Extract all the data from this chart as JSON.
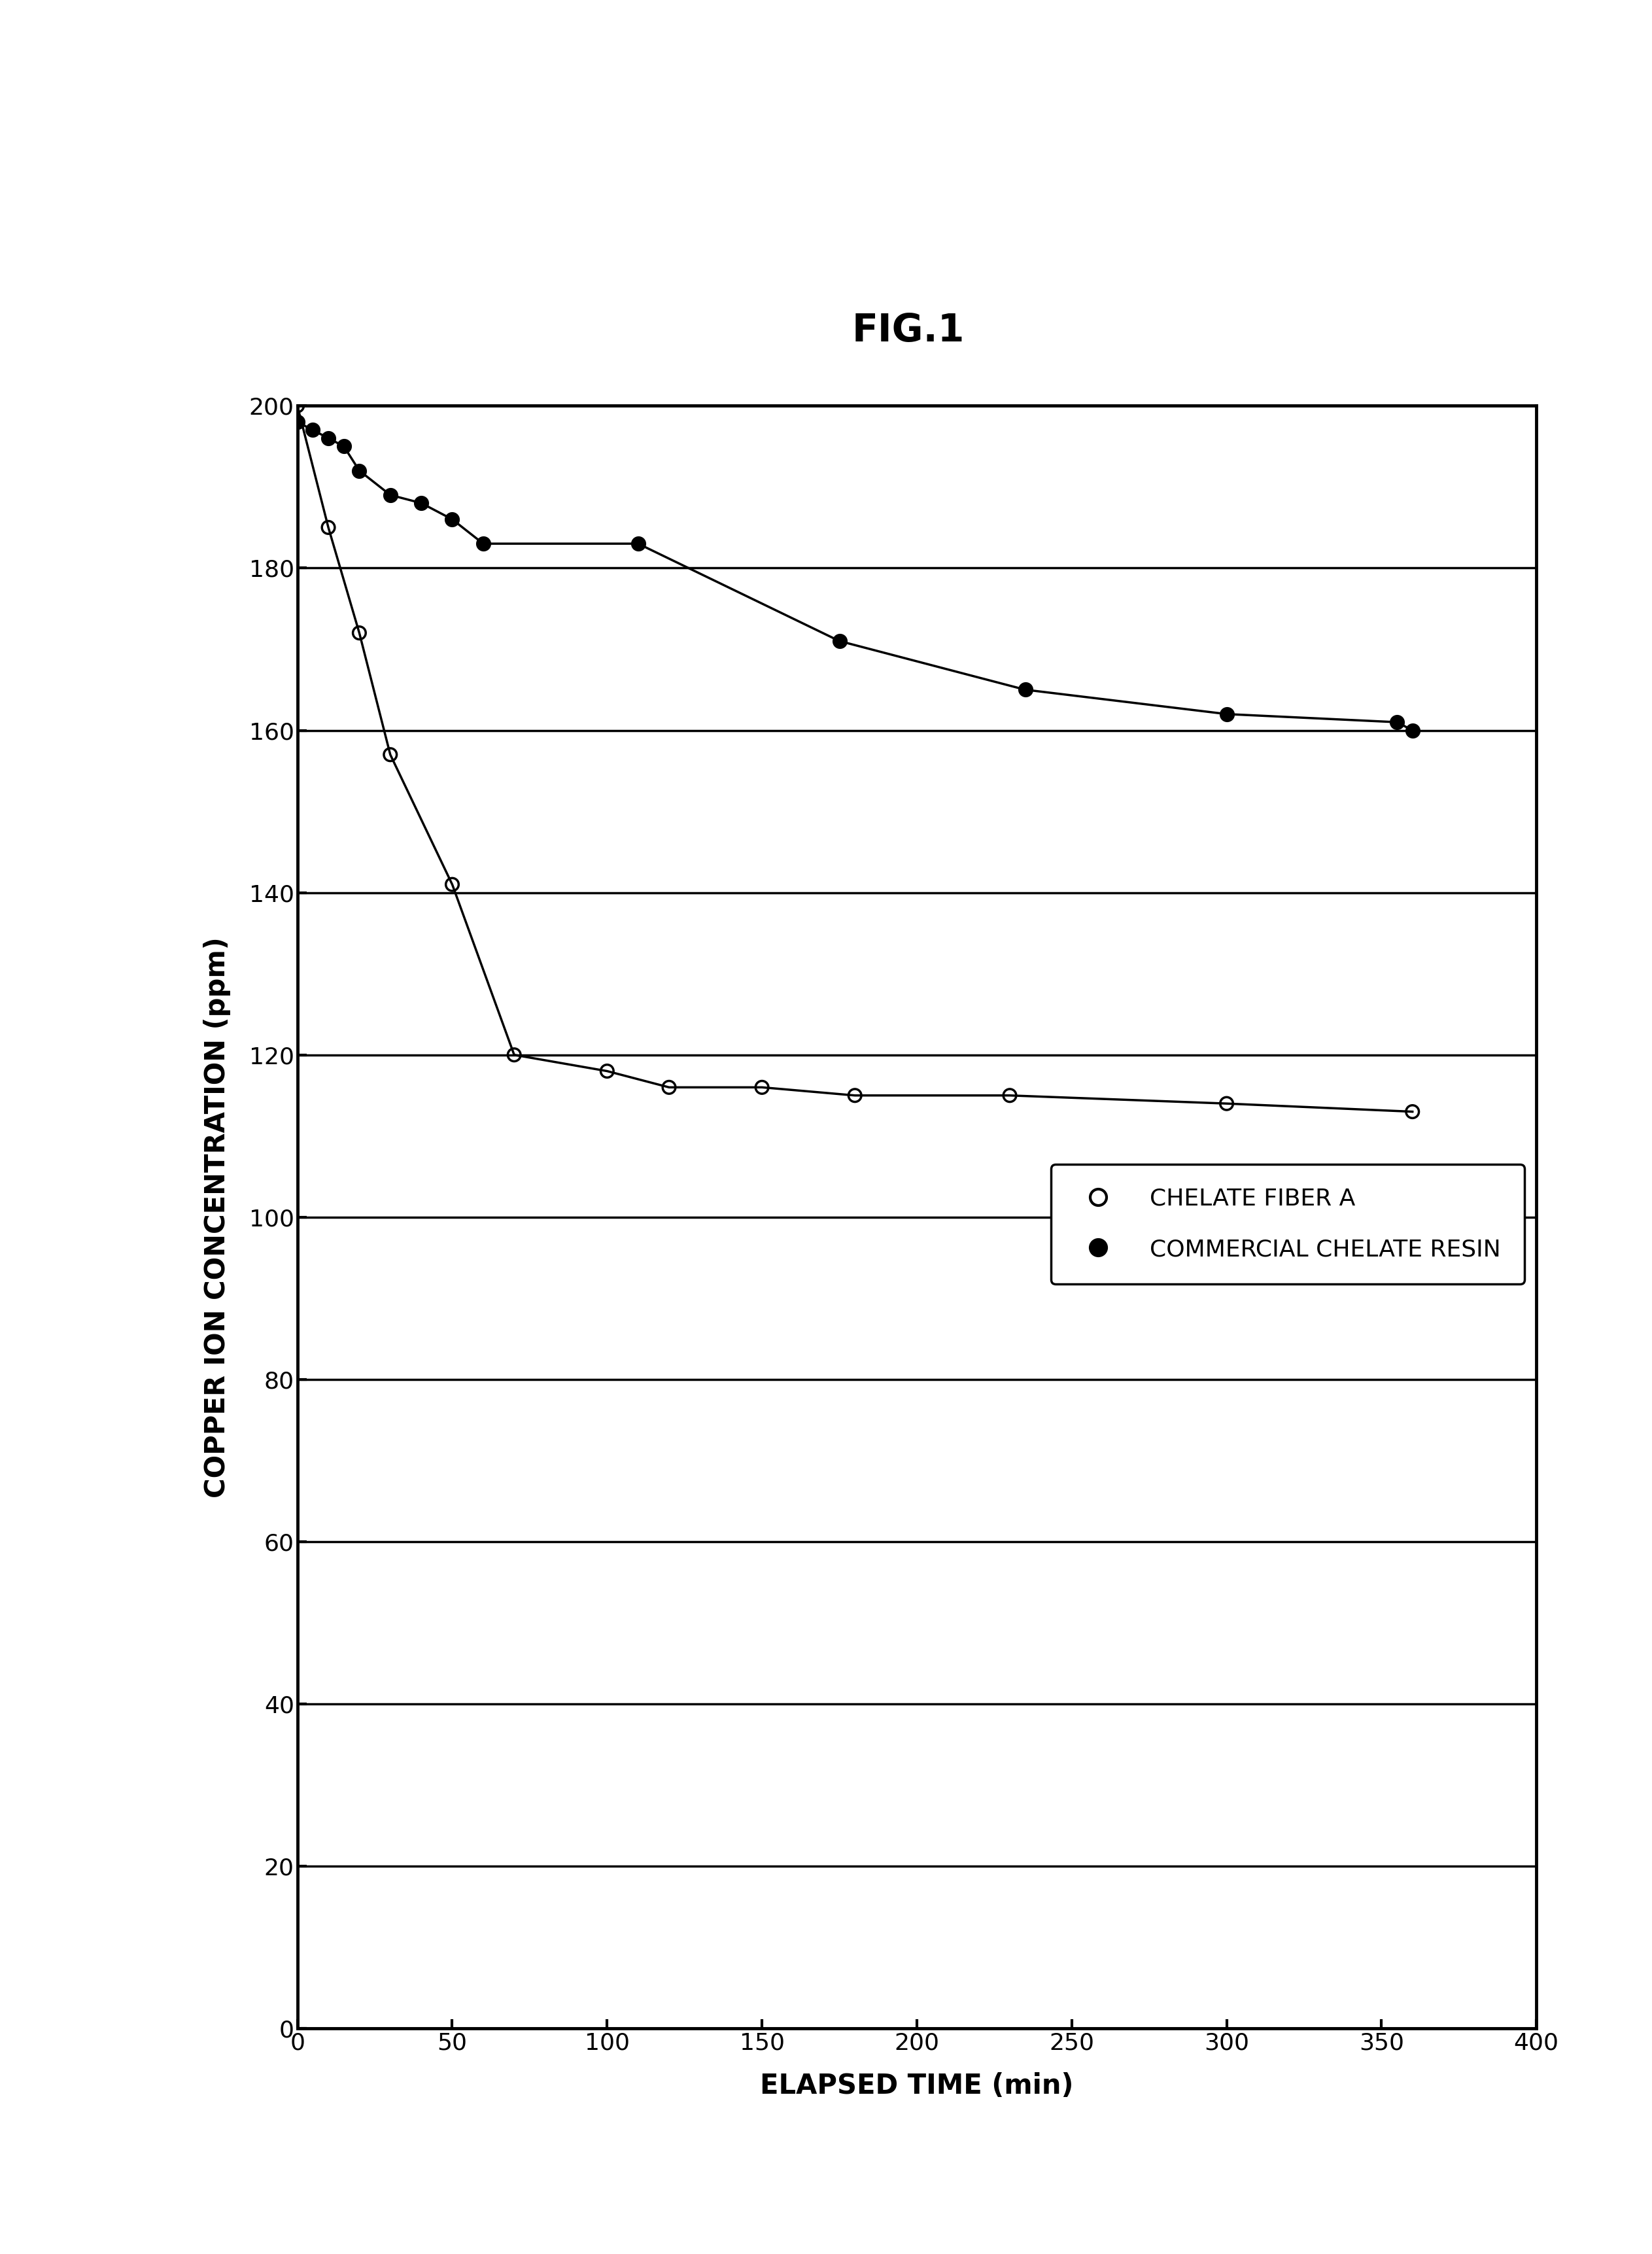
{
  "title": "FIG.1",
  "xlabel": "ELAPSED TIME (min)",
  "ylabel": "COPPER ION CONCENTRATION (ppm)",
  "xlim": [
    0,
    400
  ],
  "ylim": [
    0,
    200
  ],
  "xticks": [
    0,
    50,
    100,
    150,
    200,
    250,
    300,
    350,
    400
  ],
  "yticks": [
    0,
    20,
    40,
    60,
    80,
    100,
    120,
    140,
    160,
    180,
    200
  ],
  "chelate_fiber_x": [
    0,
    10,
    20,
    30,
    50,
    70,
    100,
    120,
    150,
    180,
    230,
    300,
    360
  ],
  "chelate_fiber_y": [
    200,
    185,
    172,
    157,
    141,
    120,
    118,
    116,
    116,
    115,
    115,
    114,
    113
  ],
  "commercial_resin_x": [
    0,
    5,
    10,
    15,
    20,
    30,
    40,
    50,
    60,
    110,
    175,
    235,
    300,
    355,
    360
  ],
  "commercial_resin_y": [
    198,
    197,
    196,
    195,
    192,
    189,
    188,
    186,
    183,
    183,
    171,
    165,
    162,
    161,
    160
  ],
  "legend_labels": [
    "CHELATE FIBER A",
    "COMMERCIAL CHELATE RESIN"
  ],
  "background_color": "#ffffff",
  "line_color": "#000000",
  "title_fontsize": 42,
  "label_fontsize": 30,
  "tick_fontsize": 26,
  "legend_fontsize": 26
}
